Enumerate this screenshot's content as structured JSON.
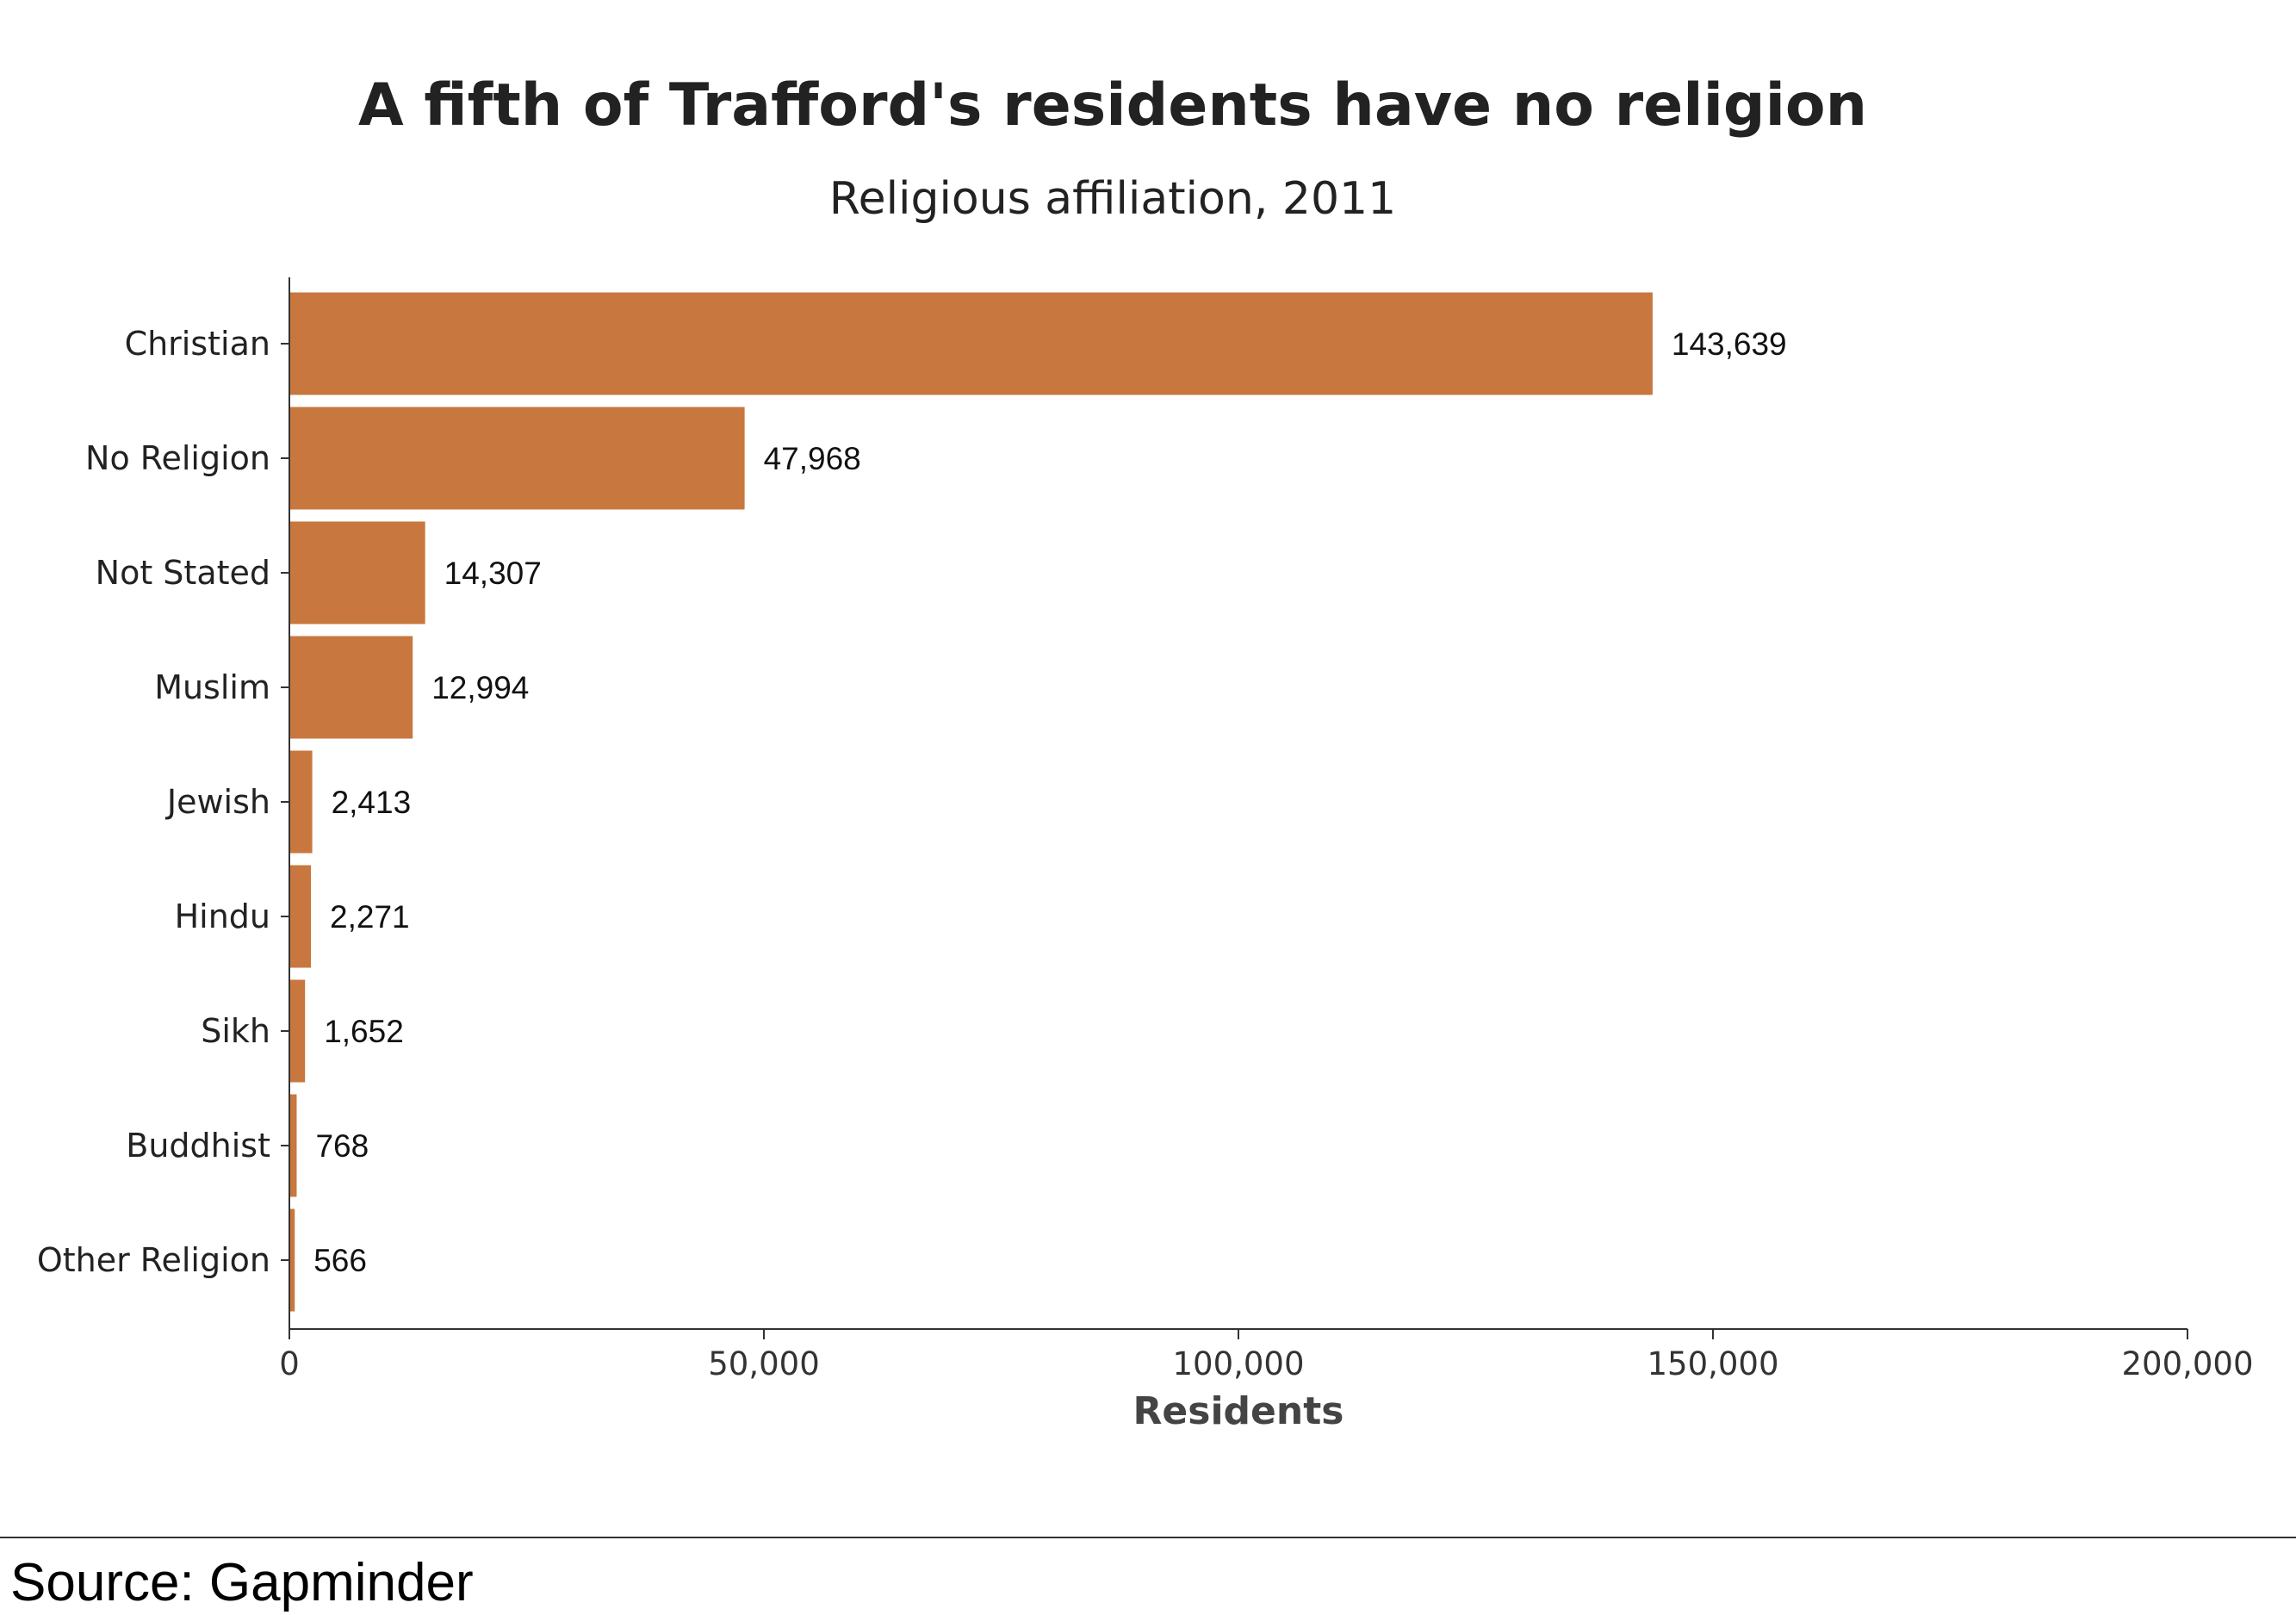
{
  "source": "Source: Gapminder",
  "colors": {
    "bar": "#c8773e"
  },
  "chart_data": {
    "type": "bar",
    "orientation": "horizontal",
    "title": "A fifth of Trafford's residents have no religion",
    "subtitle": "Religious affiliation, 2011",
    "xlabel": "Residents",
    "ylabel": "",
    "xlim": [
      0,
      200000
    ],
    "xticks": [
      0,
      50000,
      100000,
      150000,
      200000
    ],
    "xtick_labels": [
      "0",
      "50,000",
      "100,000",
      "150,000",
      "200,000"
    ],
    "grid": false,
    "categories": [
      "Christian",
      "No Religion",
      "Not Stated",
      "Muslim",
      "Jewish",
      "Hindu",
      "Sikh",
      "Buddhist",
      "Other Religion"
    ],
    "values": [
      143639,
      47968,
      14307,
      12994,
      2413,
      2271,
      1652,
      768,
      566
    ],
    "value_labels": [
      "143,639",
      "47,968",
      "14,307",
      "12,994",
      "2,413",
      "2,271",
      "1,652",
      "768",
      "566"
    ]
  }
}
